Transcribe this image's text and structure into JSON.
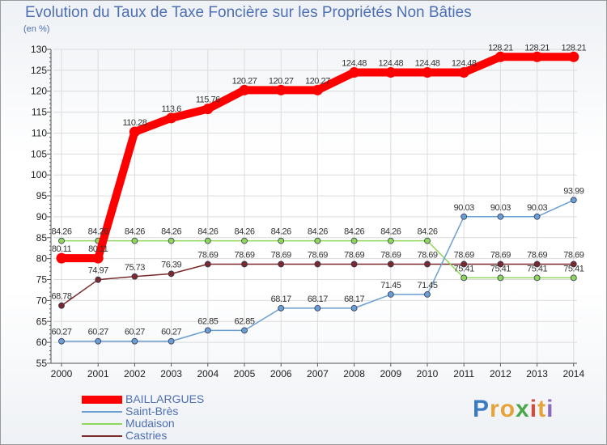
{
  "title": "Evolution du Taux de Taxe Foncière sur les Propriétés Non Bâties",
  "unit": "(en %)",
  "brand": {
    "letters": [
      "P",
      "r",
      "o",
      "x",
      "i",
      "t",
      "i"
    ],
    "colors": [
      "#3c7bc0",
      "#e8a23a",
      "#e8a23a",
      "#4aa84a",
      "#d94a3a",
      "#e8a23a",
      "#8a6abf"
    ]
  },
  "chart_data": {
    "type": "line",
    "title": "Evolution du Taux de Taxe Foncière sur les Propriétés Non Bâties",
    "ylabel": "(en %)",
    "xlabel": "",
    "ylim": [
      55,
      130
    ],
    "yticks": [
      55,
      60,
      65,
      70,
      75,
      80,
      85,
      90,
      95,
      100,
      105,
      110,
      115,
      120,
      125,
      130
    ],
    "categories": [
      "2000",
      "2001",
      "2002",
      "2003",
      "2004",
      "2005",
      "2006",
      "2007",
      "2008",
      "2009",
      "2010",
      "2011",
      "2012",
      "2013",
      "2014"
    ],
    "series": [
      {
        "name": "BAILLARGUES",
        "color": "#ff0000",
        "values": [
          80.11,
          80.11,
          110.28,
          113.6,
          115.76,
          120.27,
          120.27,
          120.27,
          124.48,
          124.48,
          124.48,
          124.48,
          128.21,
          128.21,
          128.21
        ],
        "labels": [
          "80.11",
          "80.11",
          "110.28",
          "113.6",
          "115.76",
          "120.27",
          "120.27",
          "120.27",
          "124.48",
          "124.48",
          "124.48",
          "124.48",
          "128.21",
          "128.21",
          "128.21"
        ]
      },
      {
        "name": "Saint-Brès",
        "color": "#6a9fd3",
        "values": [
          60.27,
          60.27,
          60.27,
          60.27,
          62.85,
          62.85,
          68.17,
          68.17,
          68.17,
          71.45,
          71.45,
          90.03,
          90.03,
          90.03,
          93.99
        ],
        "labels": [
          "60.27",
          "60.27",
          "60.27",
          "60.27",
          "62.85",
          "62.85",
          "68.17",
          "68.17",
          "68.17",
          "71.45",
          "71.45",
          "90.03",
          "90.03",
          "90.03",
          "93.99"
        ]
      },
      {
        "name": "Mudaison",
        "color": "#8fd65a",
        "values": [
          84.26,
          84.26,
          84.26,
          84.26,
          84.26,
          84.26,
          84.26,
          84.26,
          84.26,
          84.26,
          84.26,
          75.41,
          75.41,
          75.41,
          75.41
        ],
        "labels": [
          "84.26",
          "84.26",
          "84.26",
          "84.26",
          "84.26",
          "84.26",
          "84.26",
          "84.26",
          "84.26",
          "84.26",
          "84.26",
          "75.41",
          "75.41",
          "75.41",
          "75.41"
        ]
      },
      {
        "name": "Castries",
        "color": "#7a2a2a",
        "values": [
          68.78,
          74.97,
          75.73,
          76.39,
          78.69,
          78.69,
          78.69,
          78.69,
          78.69,
          78.69,
          78.69,
          78.69,
          78.69,
          78.69,
          78.69
        ],
        "labels": [
          "68.78",
          "74.97",
          "75.73",
          "76.39",
          "78.69",
          "78.69",
          "78.69",
          "78.69",
          "78.69",
          "78.69",
          "78.69",
          "78.69",
          "78.69",
          "78.69",
          "78.69"
        ]
      }
    ]
  }
}
